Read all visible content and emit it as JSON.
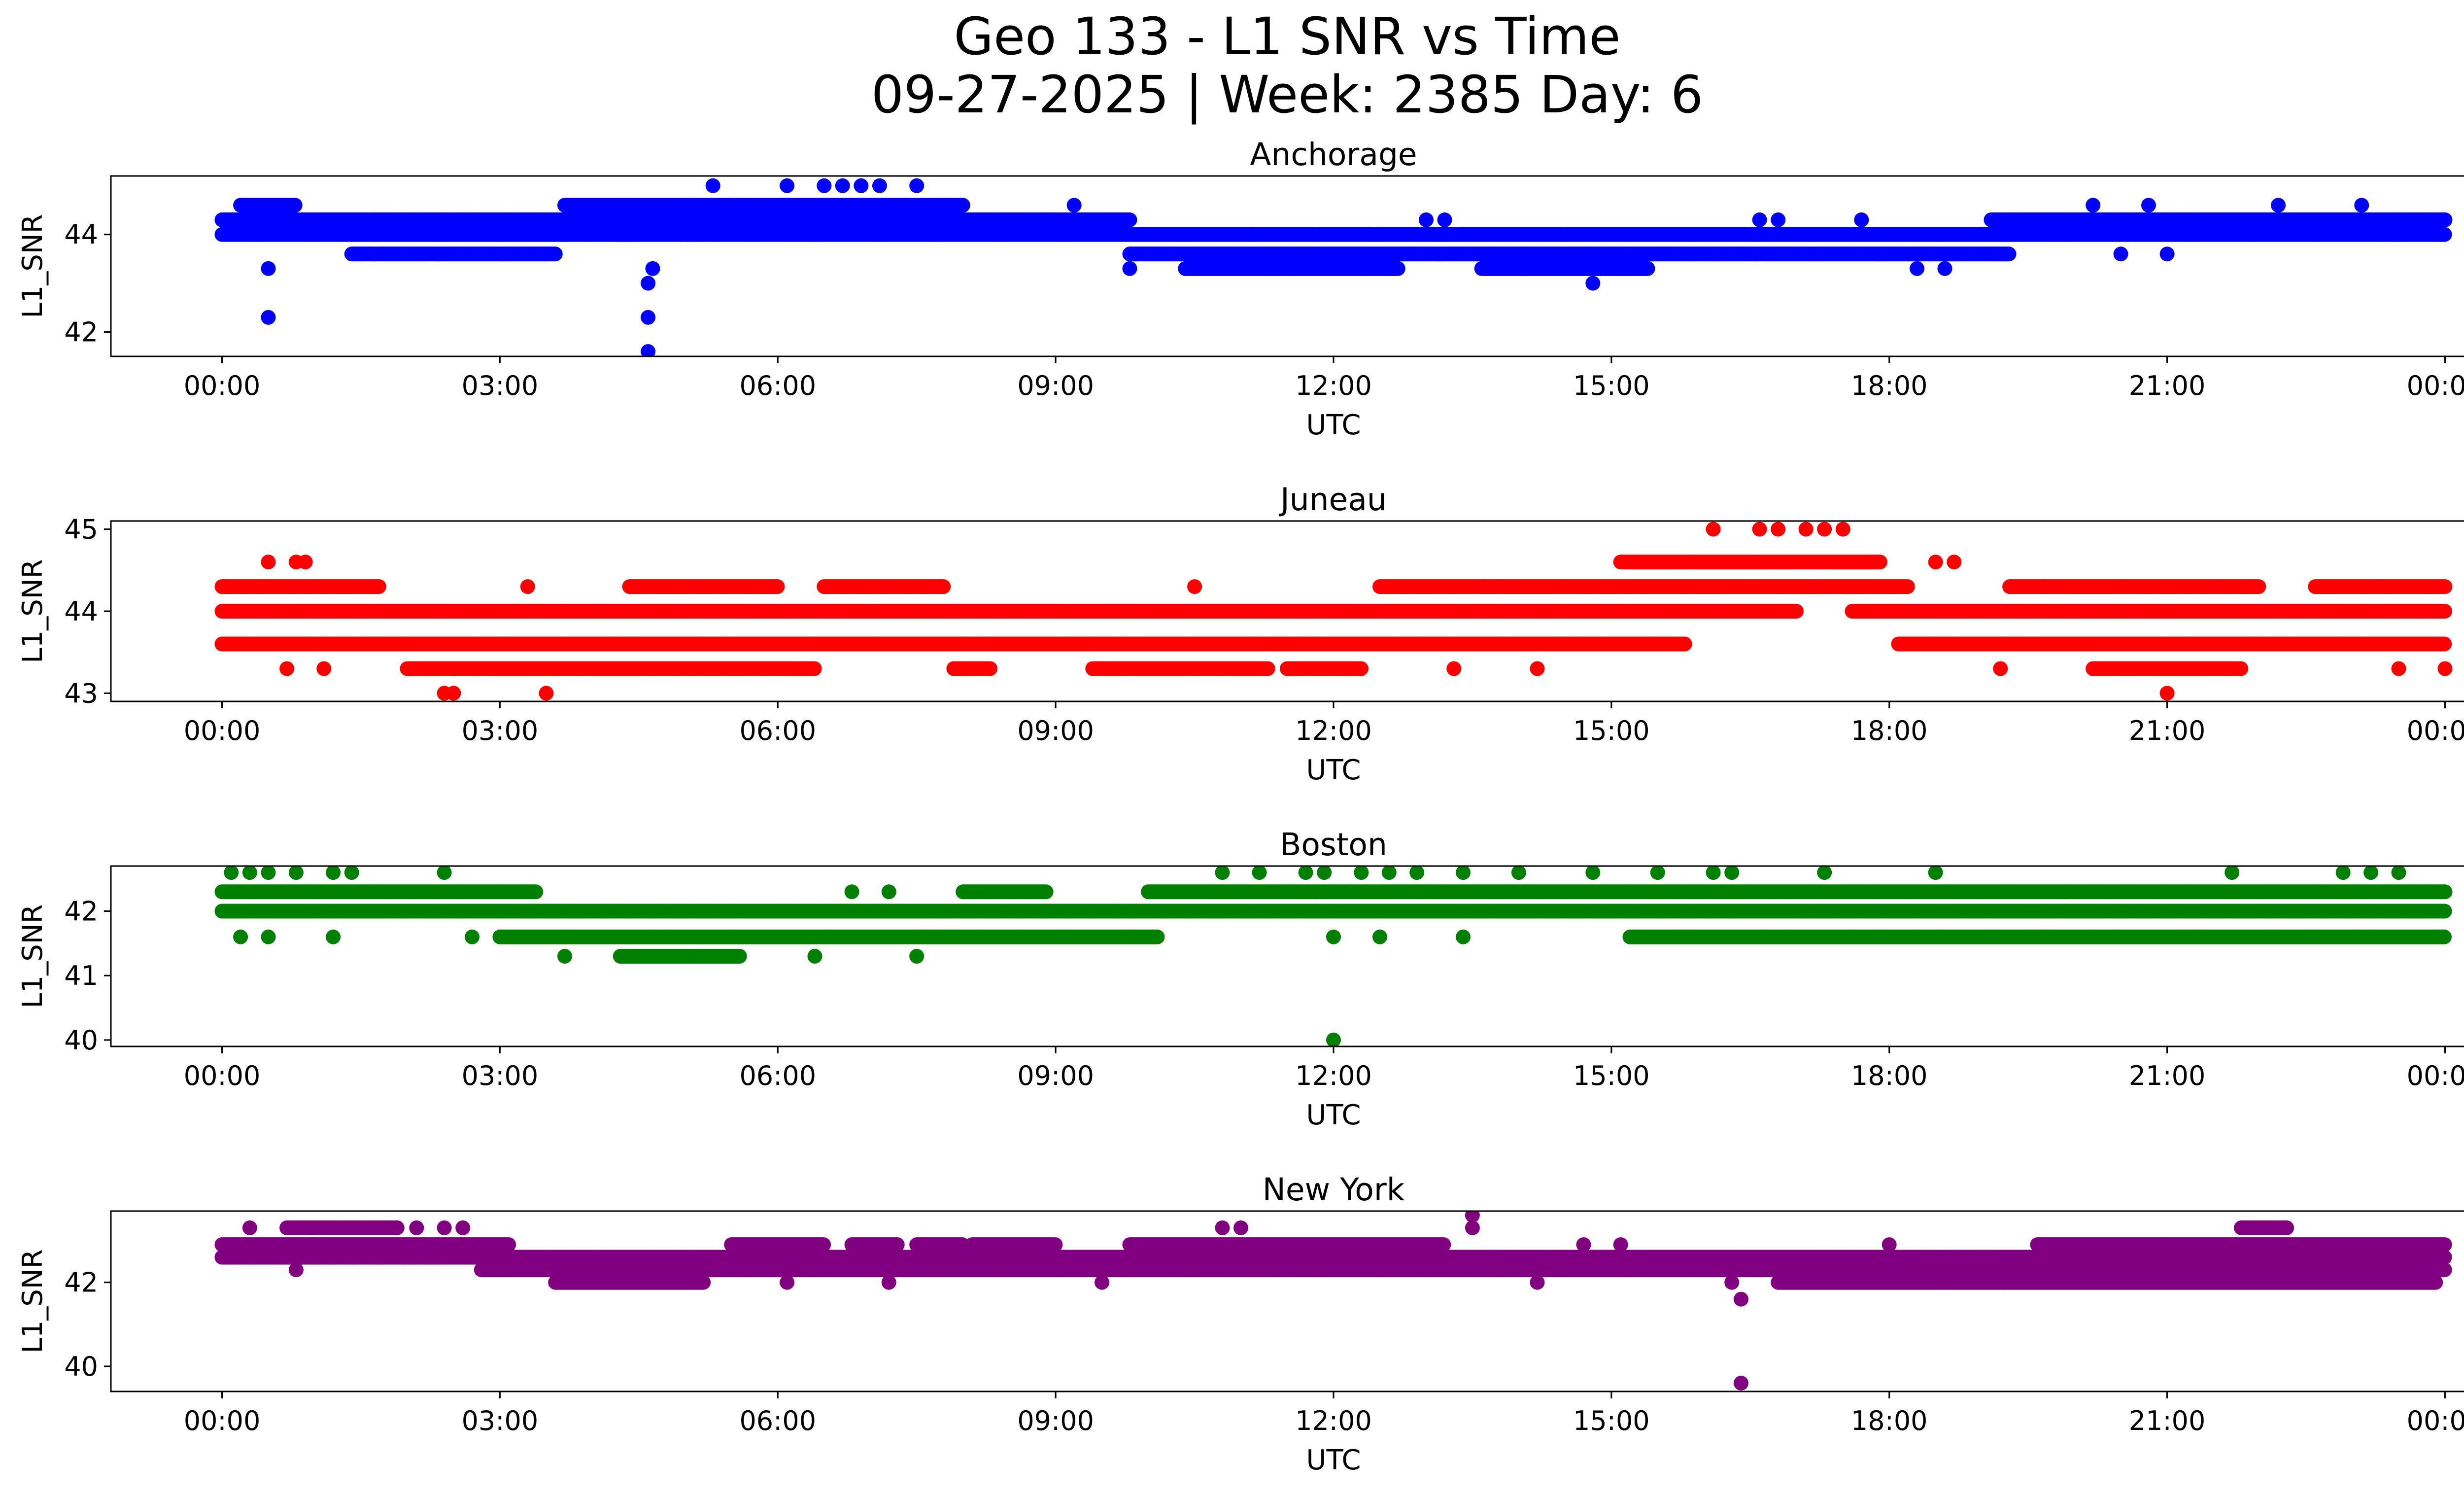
{
  "figure": {
    "title_line1": "Geo 133 - L1 SNR vs Time",
    "title_line2": "09-27-2025 | Week: 2385 Day: 6"
  },
  "chart_data": [
    {
      "type": "scatter",
      "title": "Anchorage",
      "xlabel": "UTC",
      "ylabel": "L1_SNR",
      "color": "#0000ff",
      "x_unit": "hours UTC",
      "xlim": [
        -1.2,
        25.2
      ],
      "ylim": [
        41.5,
        45.2
      ],
      "xticks": [
        0,
        3,
        6,
        9,
        12,
        15,
        18,
        21,
        24
      ],
      "xtick_labels": [
        "00:00",
        "03:00",
        "06:00",
        "09:00",
        "12:00",
        "15:00",
        "18:00",
        "21:00",
        "00:00"
      ],
      "yticks": [
        42,
        44
      ],
      "ytick_labels": [
        "42",
        "44"
      ],
      "bands": [
        {
          "y": 44.3,
          "ranges": [
            [
              0.0,
              9.8
            ],
            [
              19.1,
              24.0
            ]
          ]
        },
        {
          "y": 44.0,
          "ranges": [
            [
              0.0,
              24.0
            ]
          ]
        },
        {
          "y": 44.6,
          "ranges": [
            [
              0.2,
              0.8
            ],
            [
              3.7,
              8.0
            ]
          ]
        },
        {
          "y": 43.6,
          "ranges": [
            [
              1.4,
              3.6
            ],
            [
              9.8,
              19.3
            ]
          ]
        },
        {
          "y": 43.3,
          "ranges": [
            [
              10.4,
              12.7
            ],
            [
              13.6,
              15.4
            ]
          ]
        }
      ],
      "points": [
        [
          0.5,
          43.3
        ],
        [
          0.5,
          42.3
        ],
        [
          4.6,
          43.0
        ],
        [
          4.6,
          42.3
        ],
        [
          4.6,
          41.6
        ],
        [
          4.65,
          43.3
        ],
        [
          5.3,
          45.0
        ],
        [
          6.1,
          45.0
        ],
        [
          6.5,
          45.0
        ],
        [
          6.7,
          45.0
        ],
        [
          6.9,
          45.0
        ],
        [
          7.1,
          45.0
        ],
        [
          7.5,
          45.0
        ],
        [
          14.8,
          43.0
        ],
        [
          9.2,
          44.6
        ],
        [
          13.0,
          44.3
        ],
        [
          13.2,
          44.3
        ],
        [
          16.6,
          44.3
        ],
        [
          16.8,
          44.3
        ],
        [
          17.7,
          44.3
        ],
        [
          20.2,
          44.6
        ],
        [
          20.8,
          44.6
        ],
        [
          21.0,
          43.6
        ],
        [
          20.5,
          43.6
        ],
        [
          22.2,
          44.6
        ],
        [
          23.1,
          44.6
        ],
        [
          18.3,
          43.3
        ],
        [
          18.6,
          43.3
        ],
        [
          9.8,
          43.3
        ],
        [
          4.3,
          44.0
        ]
      ]
    },
    {
      "type": "scatter",
      "title": "Juneau",
      "xlabel": "UTC",
      "ylabel": "L1_SNR",
      "color": "#ff0000",
      "x_unit": "hours UTC",
      "xlim": [
        -1.2,
        25.2
      ],
      "ylim": [
        42.9,
        45.1
      ],
      "xticks": [
        0,
        3,
        6,
        9,
        12,
        15,
        18,
        21,
        24
      ],
      "xtick_labels": [
        "00:00",
        "03:00",
        "06:00",
        "09:00",
        "12:00",
        "15:00",
        "18:00",
        "21:00",
        "00:00"
      ],
      "yticks": [
        43,
        44,
        45
      ],
      "ytick_labels": [
        "43",
        "44",
        "45"
      ],
      "bands": [
        {
          "y": 44.0,
          "ranges": [
            [
              0.0,
              17.0
            ],
            [
              17.6,
              24.0
            ]
          ]
        },
        {
          "y": 43.6,
          "ranges": [
            [
              0.0,
              15.8
            ],
            [
              18.1,
              24.0
            ]
          ]
        },
        {
          "y": 44.3,
          "ranges": [
            [
              0.0,
              1.7
            ],
            [
              4.4,
              6.0
            ],
            [
              6.5,
              7.8
            ],
            [
              12.5,
              18.2
            ],
            [
              19.3,
              22.0
            ],
            [
              22.6,
              24.0
            ]
          ]
        },
        {
          "y": 43.3,
          "ranges": [
            [
              2.0,
              6.4
            ],
            [
              7.9,
              8.3
            ],
            [
              9.4,
              11.3
            ],
            [
              11.5,
              12.3
            ],
            [
              20.2,
              21.8
            ]
          ]
        },
        {
          "y": 44.6,
          "ranges": [
            [
              15.1,
              17.9
            ]
          ]
        }
      ],
      "points": [
        [
          0.5,
          44.6
        ],
        [
          0.8,
          44.6
        ],
        [
          0.9,
          44.6
        ],
        [
          2.4,
          43.0
        ],
        [
          2.5,
          43.0
        ],
        [
          3.5,
          43.0
        ],
        [
          16.1,
          45.0
        ],
        [
          16.6,
          45.0
        ],
        [
          16.8,
          45.0
        ],
        [
          17.1,
          45.0
        ],
        [
          17.3,
          45.0
        ],
        [
          17.5,
          45.0
        ],
        [
          21.0,
          43.0
        ],
        [
          0.7,
          43.3
        ],
        [
          1.1,
          43.3
        ],
        [
          13.3,
          43.3
        ],
        [
          14.2,
          43.3
        ],
        [
          19.2,
          43.3
        ],
        [
          23.5,
          43.3
        ],
        [
          24.0,
          43.3
        ],
        [
          10.5,
          44.3
        ],
        [
          3.3,
          44.3
        ],
        [
          18.5,
          44.6
        ],
        [
          18.7,
          44.6
        ]
      ]
    },
    {
      "type": "scatter",
      "title": "Boston",
      "xlabel": "UTC",
      "ylabel": "L1_SNR",
      "color": "#008000",
      "x_unit": "hours UTC",
      "xlim": [
        -1.2,
        25.2
      ],
      "ylim": [
        39.9,
        42.7
      ],
      "xticks": [
        0,
        3,
        6,
        9,
        12,
        15,
        18,
        21,
        24
      ],
      "xtick_labels": [
        "00:00",
        "03:00",
        "06:00",
        "09:00",
        "12:00",
        "15:00",
        "18:00",
        "21:00",
        "00:00"
      ],
      "yticks": [
        40,
        41,
        42
      ],
      "ytick_labels": [
        "40",
        "41",
        "42"
      ],
      "bands": [
        {
          "y": 42.0,
          "ranges": [
            [
              0.0,
              24.0
            ]
          ]
        },
        {
          "y": 42.3,
          "ranges": [
            [
              0.0,
              3.4
            ],
            [
              8.0,
              8.9
            ],
            [
              10.0,
              24.0
            ]
          ]
        },
        {
          "y": 41.6,
          "ranges": [
            [
              3.0,
              10.1
            ],
            [
              15.2,
              24.0
            ]
          ]
        },
        {
          "y": 41.3,
          "ranges": [
            [
              4.3,
              5.6
            ]
          ]
        }
      ],
      "points": [
        [
          0.1,
          42.6
        ],
        [
          0.3,
          42.6
        ],
        [
          0.5,
          42.6
        ],
        [
          0.8,
          42.6
        ],
        [
          1.2,
          42.6
        ],
        [
          1.4,
          42.6
        ],
        [
          2.4,
          42.6
        ],
        [
          10.8,
          42.6
        ],
        [
          11.2,
          42.6
        ],
        [
          11.7,
          42.6
        ],
        [
          11.9,
          42.6
        ],
        [
          12.3,
          42.6
        ],
        [
          12.6,
          42.6
        ],
        [
          12.9,
          42.6
        ],
        [
          13.4,
          42.6
        ],
        [
          14.0,
          42.6
        ],
        [
          14.8,
          42.6
        ],
        [
          15.5,
          42.6
        ],
        [
          16.1,
          42.6
        ],
        [
          16.3,
          42.6
        ],
        [
          17.3,
          42.6
        ],
        [
          18.5,
          42.6
        ],
        [
          21.7,
          42.6
        ],
        [
          22.9,
          42.6
        ],
        [
          23.2,
          42.6
        ],
        [
          23.5,
          42.6
        ],
        [
          0.2,
          41.6
        ],
        [
          0.5,
          41.6
        ],
        [
          1.2,
          41.6
        ],
        [
          2.7,
          41.6
        ],
        [
          3.7,
          41.3
        ],
        [
          6.4,
          41.3
        ],
        [
          7.5,
          41.3
        ],
        [
          12.0,
          41.6
        ],
        [
          12.5,
          41.6
        ],
        [
          13.4,
          41.6
        ],
        [
          12.0,
          40.0
        ],
        [
          6.8,
          42.3
        ],
        [
          7.2,
          42.3
        ]
      ]
    },
    {
      "type": "scatter",
      "title": "New York",
      "xlabel": "UTC",
      "ylabel": "L1_SNR",
      "color": "#800080",
      "x_unit": "hours UTC",
      "xlim": [
        -1.2,
        25.2
      ],
      "ylim": [
        39.4,
        43.7
      ],
      "xticks": [
        0,
        3,
        6,
        9,
        12,
        15,
        18,
        21,
        24
      ],
      "xtick_labels": [
        "00:00",
        "03:00",
        "06:00",
        "09:00",
        "12:00",
        "15:00",
        "18:00",
        "21:00",
        "00:00"
      ],
      "yticks": [
        40,
        42
      ],
      "ytick_labels": [
        "40",
        "42"
      ],
      "bands": [
        {
          "y": 42.6,
          "ranges": [
            [
              0.0,
              24.0
            ]
          ]
        },
        {
          "y": 42.9,
          "ranges": [
            [
              0.0,
              3.1
            ],
            [
              5.5,
              6.5
            ],
            [
              6.8,
              7.3
            ],
            [
              7.5,
              8.0
            ],
            [
              8.1,
              9.0
            ],
            [
              9.8,
              13.2
            ],
            [
              19.6,
              24.0
            ]
          ]
        },
        {
          "y": 42.3,
          "ranges": [
            [
              2.8,
              24.0
            ]
          ]
        },
        {
          "y": 42.0,
          "ranges": [
            [
              3.6,
              5.2
            ],
            [
              16.8,
              23.9
            ]
          ]
        },
        {
          "y": 43.3,
          "ranges": [
            [
              0.7,
              1.9
            ],
            [
              21.8,
              22.3
            ]
          ]
        }
      ],
      "points": [
        [
          0.3,
          43.3
        ],
        [
          1.1,
          43.3
        ],
        [
          2.1,
          43.3
        ],
        [
          2.4,
          43.3
        ],
        [
          2.6,
          43.3
        ],
        [
          10.8,
          43.3
        ],
        [
          11.0,
          43.3
        ],
        [
          0.8,
          42.3
        ],
        [
          6.1,
          42.0
        ],
        [
          7.2,
          42.0
        ],
        [
          9.5,
          42.0
        ],
        [
          14.2,
          42.0
        ],
        [
          13.5,
          43.6
        ],
        [
          13.5,
          43.3
        ],
        [
          14.7,
          42.9
        ],
        [
          15.1,
          42.9
        ],
        [
          16.3,
          42.0
        ],
        [
          16.4,
          41.6
        ],
        [
          16.4,
          39.6
        ],
        [
          23.9,
          42.3
        ],
        [
          18.0,
          42.9
        ],
        [
          21.0,
          42.9
        ]
      ]
    }
  ]
}
